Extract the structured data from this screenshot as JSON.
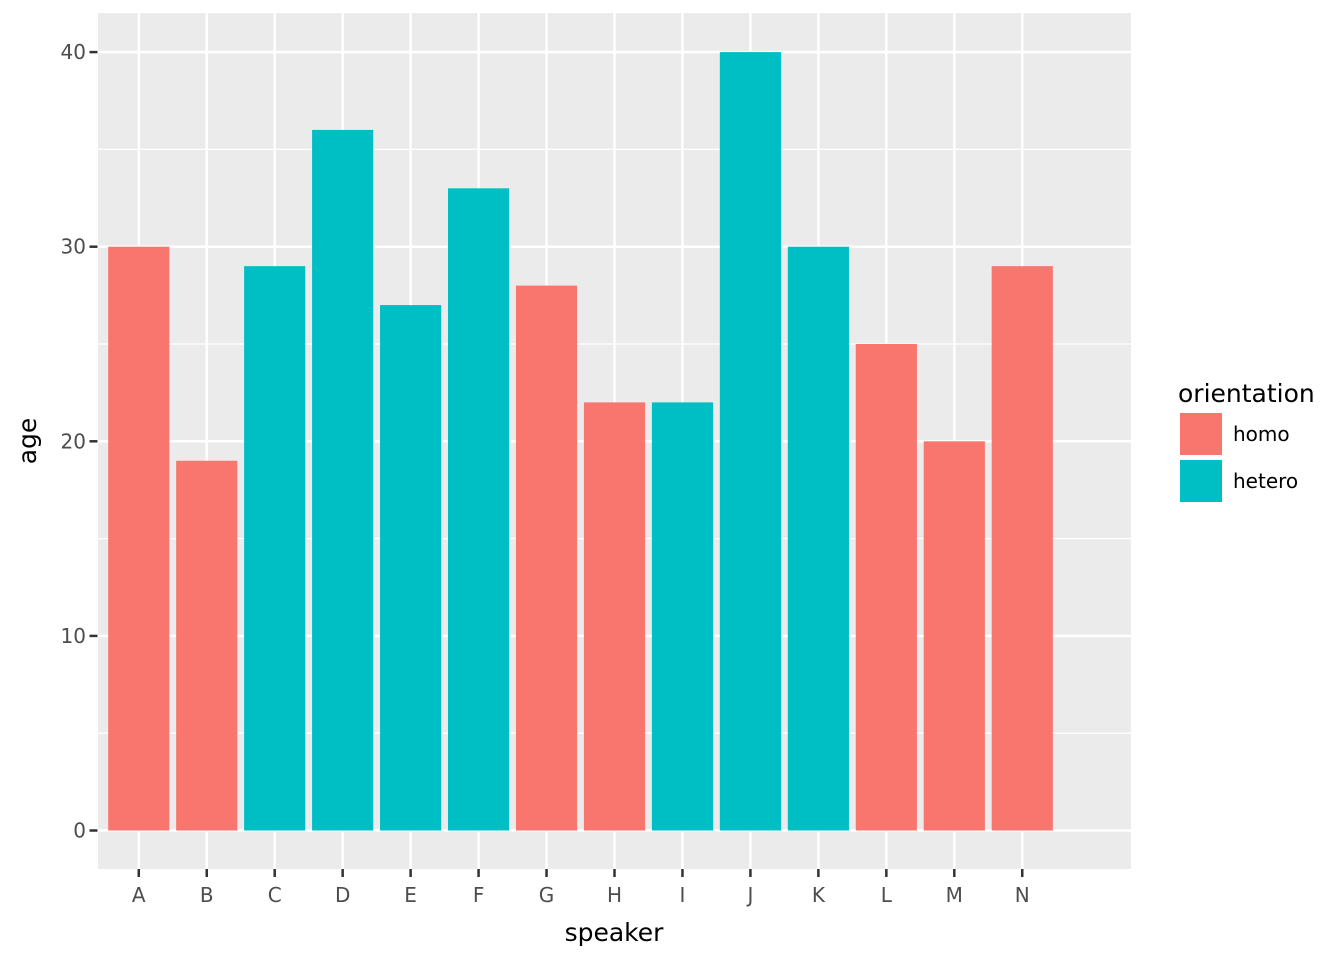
{
  "chart_data": {
    "type": "bar",
    "title": "",
    "xlabel": "speaker",
    "ylabel": "age",
    "categories": [
      "A",
      "B",
      "C",
      "D",
      "E",
      "F",
      "G",
      "H",
      "I",
      "J",
      "K",
      "L",
      "M",
      "N"
    ],
    "values": [
      30,
      19,
      29,
      36,
      27,
      33,
      28,
      22,
      22,
      40,
      30,
      25,
      20,
      29
    ],
    "groups": [
      "homo",
      "homo",
      "hetero",
      "hetero",
      "hetero",
      "hetero",
      "homo",
      "homo",
      "hetero",
      "hetero",
      "hetero",
      "homo",
      "homo",
      "homo"
    ],
    "series": [
      {
        "name": "homo",
        "categories": [
          "A",
          "B",
          "G",
          "H",
          "L",
          "M",
          "N"
        ],
        "values": [
          30,
          19,
          28,
          22,
          25,
          20,
          29
        ]
      },
      {
        "name": "hetero",
        "categories": [
          "C",
          "D",
          "E",
          "F",
          "I",
          "J",
          "K"
        ],
        "values": [
          29,
          36,
          27,
          33,
          22,
          40,
          30
        ]
      }
    ],
    "colors": {
      "homo": "#F8766D",
      "hetero": "#00BFC4"
    },
    "legend": {
      "title": "orientation",
      "position": "right",
      "entries": [
        {
          "label": "homo",
          "color": "#F8766D"
        },
        {
          "label": "hetero",
          "color": "#00BFC4"
        }
      ]
    },
    "y_ticks": [
      0,
      10,
      20,
      30,
      40
    ],
    "y_minor_ticks": [
      5,
      15,
      25,
      35
    ],
    "ylim": [
      0,
      40
    ],
    "bar_width_fraction": 0.9,
    "grid": true,
    "theme": {
      "panel_bg": "#EBEBEB",
      "grid_color": "#FFFFFF",
      "tick_mark_color": "#333333",
      "tick_label_color": "#4D4D4D",
      "axis_title_color": "#000000",
      "background": "#FFFFFF"
    }
  }
}
